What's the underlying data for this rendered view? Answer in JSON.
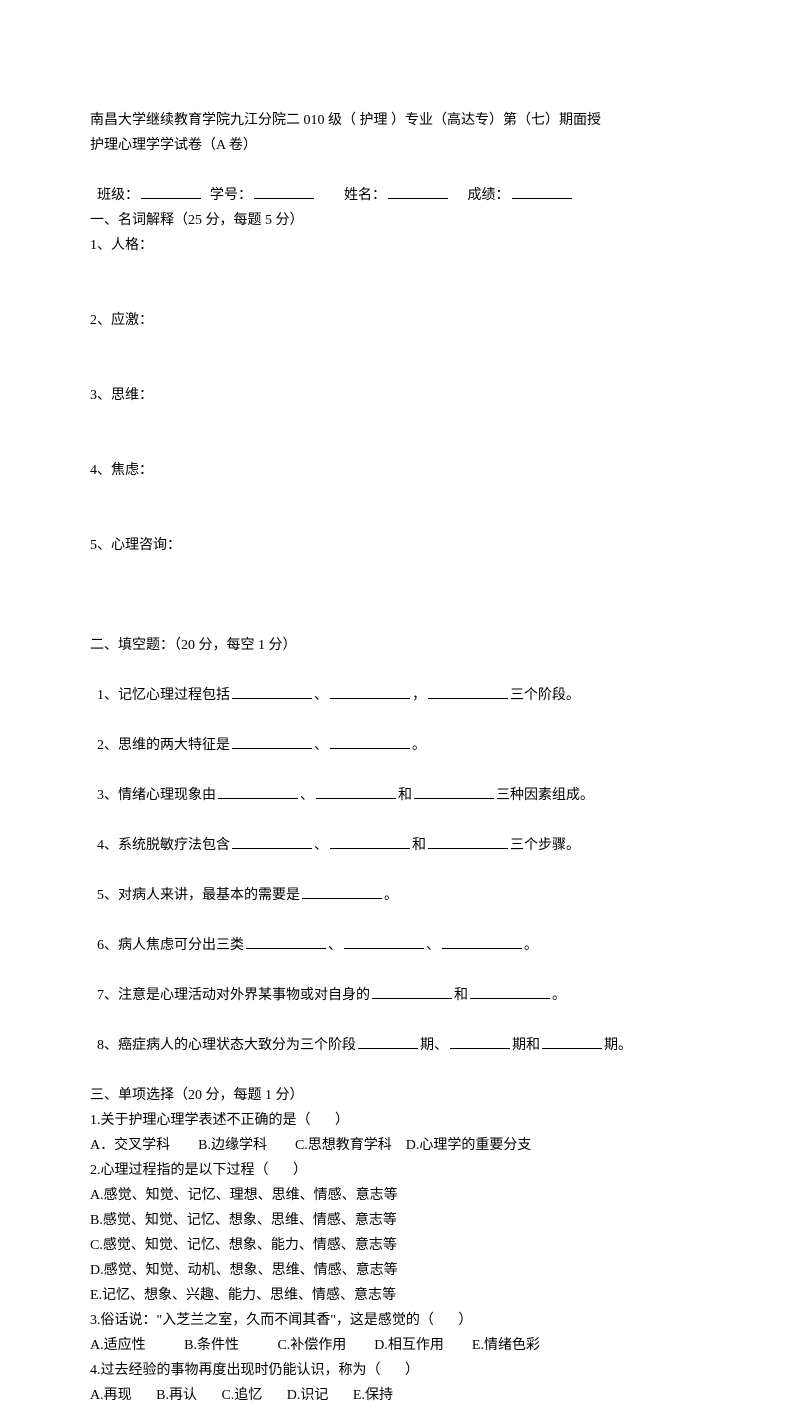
{
  "header": {
    "line1": "南昌大学继续教育学院九江分院二 010 级（ 护理 ）专业（高达专）第（七）期面授",
    "line2": "护理心理学学试卷（A 卷）",
    "info_prefix1": "班级：",
    "info_prefix2": "学号：",
    "info_prefix3": "姓名：",
    "info_prefix4": "成绩："
  },
  "section1": {
    "title": "一、名词解释（25 分，每题 5 分）",
    "items": [
      "1、人格：",
      "2、应激：",
      "3、思维：",
      "4、焦虑：",
      "5、心理咨询："
    ]
  },
  "section2": {
    "title": "二、填空题：（20 分，每空 1 分）",
    "q1a": "1、记忆心理过程包括",
    "q1b": "、",
    "q1c": "，",
    "q1d": "三个阶段。",
    "q2a": "2、思维的两大特征是",
    "q2b": "、",
    "q2c": "。",
    "q3a": "3、情绪心理现象由",
    "q3b": "、",
    "q3c": "和",
    "q3d": "三种因素组成。",
    "q4a": "4、系统脱敏疗法包含",
    "q4b": "、",
    "q4c": "和",
    "q4d": "三个步骤。",
    "q5a": "5、对病人来讲，最基本的需要是",
    "q5b": "。",
    "q6a": "6、病人焦虑可分出三类",
    "q6b": "、",
    "q6c": "、",
    "q6d": "。",
    "q7a": "7、注意是心理活动对外界某事物或对自身的",
    "q7b": "和",
    "q7c": "。",
    "q8a": "8、癌症病人的心理状态大致分为三个阶段",
    "q8b": "期、",
    "q8c": "期和",
    "q8d": "期。"
  },
  "section3": {
    "title": "三、单项选择（20 分，每题 1 分）",
    "q1": "1.关于护理心理学表述不正确的是（       ）",
    "q1opts": "A．交叉学科        B.边缘学科        C.思想教育学科    D.心理学的重要分支",
    "q2": "2.心理过程指的是以下过程（       ）",
    "q2a": "A.感觉、知觉、记忆、理想、思维、情感、意志等",
    "q2b": "B.感觉、知觉、记忆、想象、思维、情感、意志等",
    "q2c": "C.感觉、知觉、记忆、想象、能力、情感、意志等",
    "q2d": "D.感觉、知觉、动机、想象、思维、情感、意志等",
    "q2e": "E.记忆、想象、兴趣、能力、思维、情感、意志等",
    "q3": "3.俗话说：\"入芝兰之室，久而不闻其香\"，这是感觉的（       ）",
    "q3opts": "A.适应性           B.条件性           C.补偿作用        D.相互作用        E.情绪色彩",
    "q4": "4.过去经验的事物再度出现时仍能认识，称为（       ）",
    "q4opts": "A.再现       B.再认       C.追忆       D.识记       E.保持"
  }
}
